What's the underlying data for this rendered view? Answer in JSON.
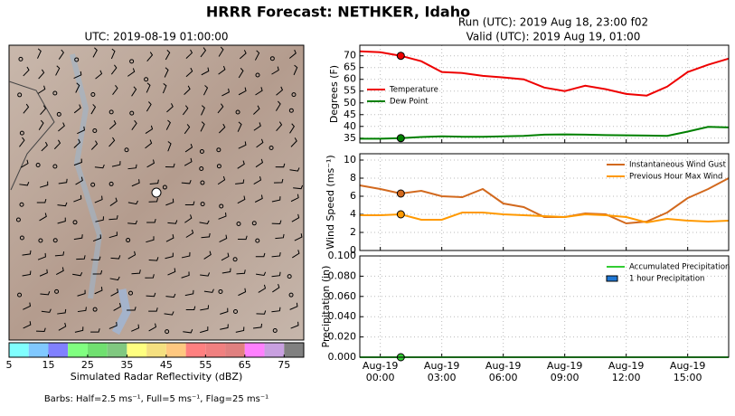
{
  "title": "HRRR Forecast: NETHKER, Idaho",
  "map": {
    "title": "UTC: 2019-08-19 01:00:00",
    "colorbar": {
      "colors": [
        "#80ffff",
        "#80c8ff",
        "#8080ff",
        "#80ff80",
        "#70e070",
        "#80c880",
        "#ffff80",
        "#f5e080",
        "#ffc880",
        "#ff8080",
        "#f08080",
        "#e08080",
        "#ff80ff",
        "#c8a0e0",
        "#808080"
      ],
      "lim": [
        5,
        80
      ],
      "ticks": [
        5,
        15,
        25,
        35,
        45,
        55,
        65,
        75
      ],
      "label": "Simulated Radar Reflectivity (dBZ)"
    },
    "barbs_note": "Barbs: Half=2.5 ms⁻¹, Full=5 ms⁻¹, Flag=25 ms⁻¹"
  },
  "chart_data": [
    {
      "type": "line",
      "title": "Run (UTC): 2019 Aug 18, 23:00 f02",
      "subtitle": "Valid (UTC): 2019 Aug 19, 01:00",
      "ylabel": "Degrees (F)",
      "highlight": "Aug-19 01:00",
      "legend": "center left",
      "grid": true,
      "x": [
        "Aug-18 23:00",
        "Aug-19 00:00",
        "Aug-19 01:00",
        "Aug-19 02:00",
        "Aug-19 03:00",
        "Aug-19 04:00",
        "Aug-19 05:00",
        "Aug-19 06:00",
        "Aug-19 07:00",
        "Aug-19 08:00",
        "Aug-19 09:00",
        "Aug-19 10:00",
        "Aug-19 11:00",
        "Aug-19 12:00",
        "Aug-19 13:00",
        "Aug-19 14:00",
        "Aug-19 15:00",
        "Aug-19 16:00",
        "Aug-19 17:00"
      ],
      "xticks": [
        "Aug-19 00:00",
        "Aug-19 03:00",
        "Aug-19 06:00",
        "Aug-19 09:00",
        "Aug-19 12:00",
        "Aug-19 15:00"
      ],
      "ylim": [
        33,
        74.5
      ],
      "yticks": [
        35,
        40,
        45,
        50,
        55,
        60,
        65,
        70
      ],
      "series": [
        {
          "name": "Temperature",
          "color": "#ee0000",
          "values": [
            71.9,
            71.5,
            70,
            67.7,
            63.1,
            62.7,
            61.5,
            60.8,
            60,
            56.5,
            55,
            57.3,
            55.8,
            53.8,
            53.1,
            56.9,
            63.1,
            66.2,
            68.8
          ]
        },
        {
          "name": "Dew Point",
          "color": "#008000",
          "values": [
            34.8,
            34.8,
            35,
            35.5,
            35.8,
            35.6,
            35.6,
            35.8,
            36,
            36.5,
            36.6,
            36.5,
            36.3,
            36.2,
            36.1,
            36,
            37.8,
            39.8,
            39.6
          ]
        }
      ]
    },
    {
      "type": "line",
      "ylabel": "Wind Speed (ms⁻¹)",
      "highlight": "Aug-19 01:00",
      "legend": "upper right",
      "grid": true,
      "x": [
        "Aug-18 23:00",
        "Aug-19 00:00",
        "Aug-19 01:00",
        "Aug-19 02:00",
        "Aug-19 03:00",
        "Aug-19 04:00",
        "Aug-19 05:00",
        "Aug-19 06:00",
        "Aug-19 07:00",
        "Aug-19 08:00",
        "Aug-19 09:00",
        "Aug-19 10:00",
        "Aug-19 11:00",
        "Aug-19 12:00",
        "Aug-19 13:00",
        "Aug-19 14:00",
        "Aug-19 15:00",
        "Aug-19 16:00",
        "Aug-19 17:00"
      ],
      "xticks": [
        "Aug-19 00:00",
        "Aug-19 03:00",
        "Aug-19 06:00",
        "Aug-19 09:00",
        "Aug-19 12:00",
        "Aug-19 15:00"
      ],
      "ylim": [
        0,
        10.7
      ],
      "yticks": [
        0,
        2,
        4,
        6,
        8,
        10
      ],
      "series": [
        {
          "name": "Instantaneous Wind Gust",
          "color": "#d2691e",
          "values": [
            7.2,
            6.8,
            6.3,
            6.6,
            6.0,
            5.9,
            6.8,
            5.2,
            4.8,
            3.7,
            3.7,
            4.1,
            4.0,
            3.0,
            3.2,
            4.2,
            5.8,
            6.8,
            8.0
          ]
        },
        {
          "name": "Previous Hour Max Wind",
          "color": "#ff9900",
          "values": [
            3.9,
            3.9,
            4.0,
            3.4,
            3.4,
            4.2,
            4.2,
            4.0,
            3.9,
            3.8,
            3.7,
            4.0,
            3.9,
            3.7,
            3.1,
            3.5,
            3.3,
            3.2,
            3.3
          ]
        }
      ]
    },
    {
      "type": "line",
      "ylabel": "Precipitation (in)",
      "highlight": "Aug-19 01:00",
      "legend": "upper right",
      "grid": true,
      "x": [
        "Aug-18 23:00",
        "Aug-19 00:00",
        "Aug-19 01:00",
        "Aug-19 02:00",
        "Aug-19 03:00",
        "Aug-19 04:00",
        "Aug-19 05:00",
        "Aug-19 06:00",
        "Aug-19 07:00",
        "Aug-19 08:00",
        "Aug-19 09:00",
        "Aug-19 10:00",
        "Aug-19 11:00",
        "Aug-19 12:00",
        "Aug-19 13:00",
        "Aug-19 14:00",
        "Aug-19 15:00",
        "Aug-19 16:00",
        "Aug-19 17:00"
      ],
      "xticks": [
        {
          "value": "Aug-19 00:00",
          "label": "Aug-19\n00:00"
        },
        {
          "value": "Aug-19 03:00",
          "label": "Aug-19\n03:00"
        },
        {
          "value": "Aug-19 06:00",
          "label": "Aug-19\n06:00"
        },
        {
          "value": "Aug-19 09:00",
          "label": "Aug-19\n09:00"
        },
        {
          "value": "Aug-19 12:00",
          "label": "Aug-19\n12:00"
        },
        {
          "value": "Aug-19 15:00",
          "label": "Aug-19\n15:00"
        }
      ],
      "ylim": [
        0,
        0.1
      ],
      "yticks": [
        {
          "value": 0,
          "label": "0.000"
        },
        {
          "value": 0.02,
          "label": "0.020"
        },
        {
          "value": 0.04,
          "label": "0.040"
        },
        {
          "value": 0.06,
          "label": "0.060"
        },
        {
          "value": 0.08,
          "label": "0.080"
        },
        {
          "value": 0.1,
          "label": "0.100"
        }
      ],
      "series": [
        {
          "name": "Accumulated Precipitation",
          "color": "#33cc33",
          "values": [
            0,
            0,
            0,
            0,
            0,
            0,
            0,
            0,
            0,
            0,
            0,
            0,
            0,
            0,
            0,
            0,
            0,
            0,
            0
          ]
        },
        {
          "name": "1 hour Precipitation",
          "type": "bar",
          "color": "#1f77d4",
          "values": [
            0,
            0,
            0,
            0,
            0,
            0,
            0,
            0,
            0,
            0,
            0,
            0,
            0,
            0,
            0,
            0,
            0,
            0,
            0
          ]
        }
      ]
    }
  ]
}
